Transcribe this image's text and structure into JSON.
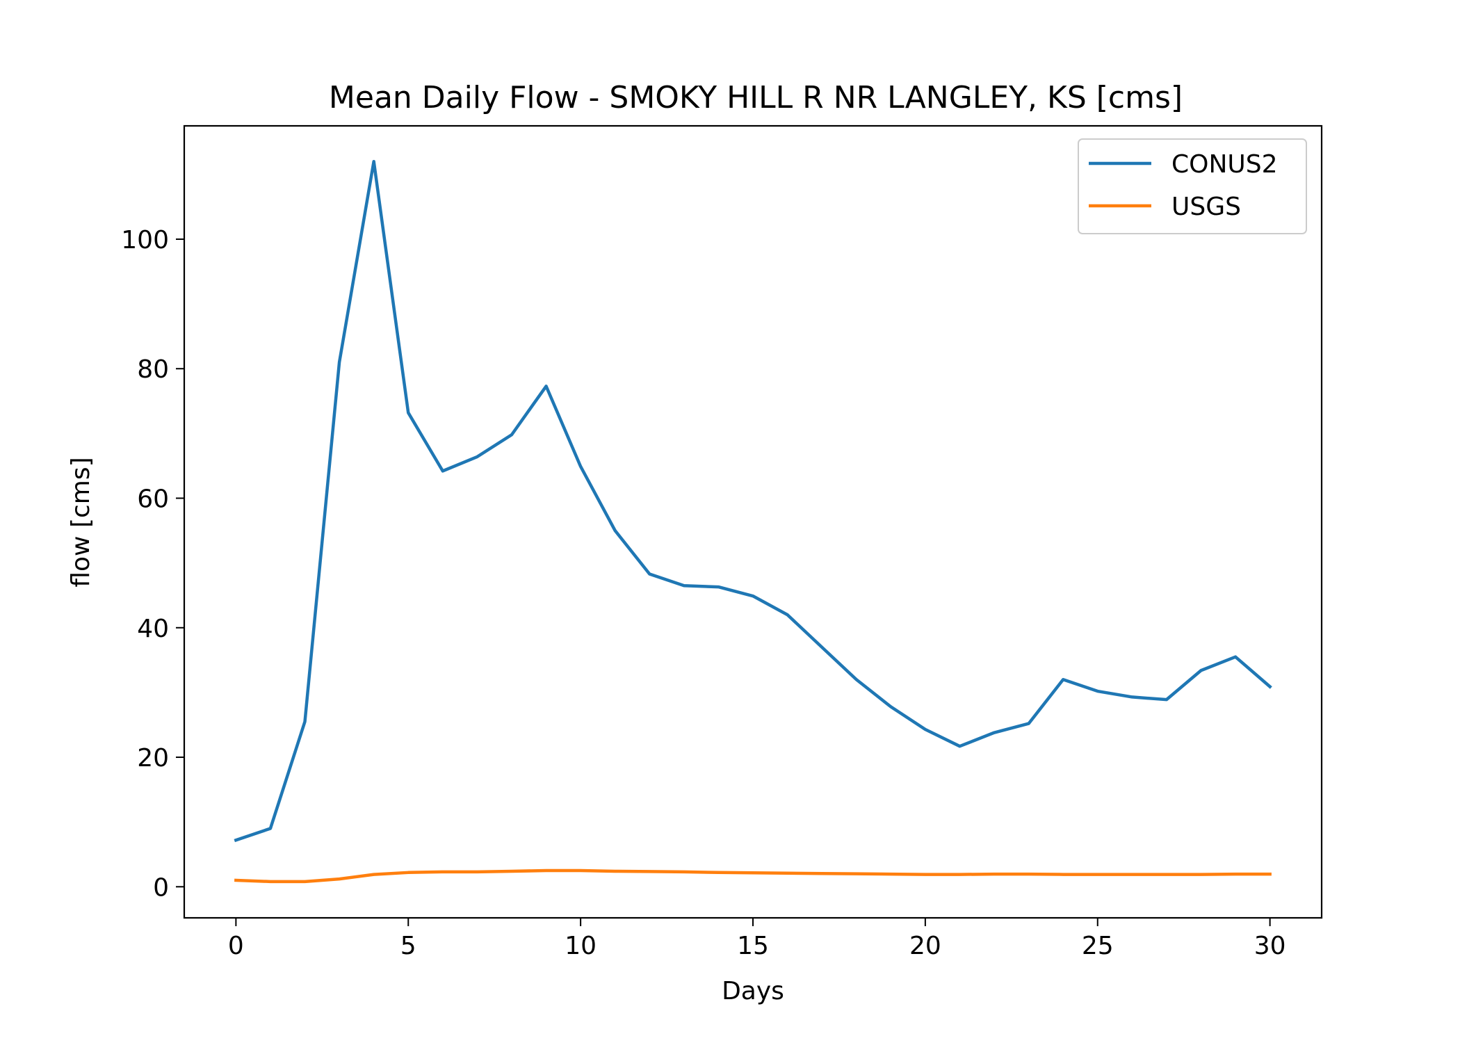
{
  "chart_data": {
    "type": "line",
    "title": "Mean Daily Flow - SMOKY HILL R NR LANGLEY, KS [cms]",
    "xlabel": "Days",
    "ylabel": "flow [cms]",
    "xlim": [
      -1.5,
      31.5
    ],
    "ylim": [
      -4.8,
      117.5
    ],
    "xticks": [
      0,
      5,
      10,
      15,
      20,
      25,
      30
    ],
    "yticks": [
      0,
      20,
      40,
      60,
      80,
      100
    ],
    "grid": false,
    "legend_position": "top-right",
    "x": [
      0,
      1,
      2,
      3,
      4,
      5,
      6,
      7,
      8,
      9,
      10,
      11,
      12,
      13,
      14,
      15,
      16,
      17,
      18,
      19,
      20,
      21,
      22,
      23,
      24,
      25,
      26,
      27,
      28,
      29,
      30
    ],
    "series": [
      {
        "name": "CONUS2",
        "color": "#1f77b4",
        "values": [
          7.2,
          9.0,
          25.5,
          81.0,
          112.0,
          73.2,
          64.2,
          66.4,
          69.8,
          77.3,
          64.9,
          55.0,
          48.3,
          46.5,
          46.3,
          44.9,
          42.0,
          37.0,
          32.0,
          27.8,
          24.3,
          21.7,
          23.8,
          25.2,
          32.0,
          30.2,
          29.3,
          28.9,
          33.4,
          35.5,
          30.9
        ]
      },
      {
        "name": "USGS",
        "color": "#ff7f0e",
        "values": [
          1.0,
          0.8,
          0.8,
          1.2,
          1.9,
          2.2,
          2.3,
          2.3,
          2.4,
          2.5,
          2.5,
          2.4,
          2.35,
          2.3,
          2.2,
          2.15,
          2.1,
          2.05,
          2.0,
          1.95,
          1.9,
          1.9,
          1.95,
          1.95,
          1.9,
          1.9,
          1.9,
          1.9,
          1.9,
          1.95,
          1.95
        ]
      }
    ]
  }
}
